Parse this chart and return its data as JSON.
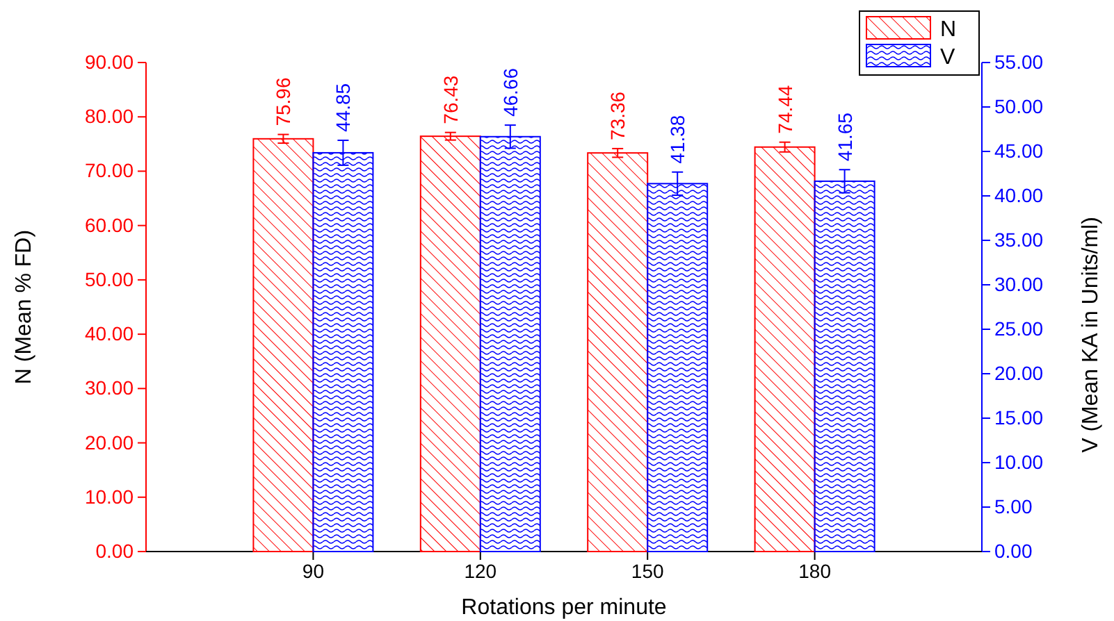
{
  "chart_data": {
    "type": "bar",
    "xlabel": "Rotations per minute",
    "ylabel": "N (Mean % FD)",
    "y2label": "V (Mean KA in Units/ml)",
    "categories": [
      "90",
      "120",
      "150",
      "180"
    ],
    "series": [
      {
        "name": "N",
        "color": "#ff0000",
        "values": [
          75.96,
          76.43,
          73.36,
          74.44
        ],
        "errors": [
          0.8,
          0.7,
          0.8,
          0.9
        ]
      },
      {
        "name": "V",
        "color": "#0000ff",
        "axis": "y2",
        "values": [
          44.85,
          46.66,
          41.38,
          41.65
        ],
        "errors": [
          1.4,
          1.3,
          1.3,
          1.3
        ]
      }
    ],
    "ylim": [
      0,
      90
    ],
    "yticks": [
      {
        "value": 0,
        "label": "0.00"
      },
      {
        "value": 10,
        "label": "10.00"
      },
      {
        "value": 20,
        "label": "20.00"
      },
      {
        "value": 30,
        "label": "30.00"
      },
      {
        "value": 40,
        "label": "40.00"
      },
      {
        "value": 50,
        "label": "50.00"
      },
      {
        "value": 60,
        "label": "60.00"
      },
      {
        "value": 70,
        "label": "70.00"
      },
      {
        "value": 80,
        "label": "80.00"
      },
      {
        "value": 90,
        "label": "90.00"
      }
    ],
    "y2lim": [
      0,
      55
    ],
    "y2ticks": [
      {
        "value": 0,
        "label": "0.00"
      },
      {
        "value": 5,
        "label": "5.00"
      },
      {
        "value": 10,
        "label": "10.00"
      },
      {
        "value": 15,
        "label": "15.00"
      },
      {
        "value": 20,
        "label": "20.00"
      },
      {
        "value": 25,
        "label": "25.00"
      },
      {
        "value": 30,
        "label": "30.00"
      },
      {
        "value": 35,
        "label": "35.00"
      },
      {
        "value": 40,
        "label": "40.00"
      },
      {
        "value": 45,
        "label": "45.00"
      },
      {
        "value": 50,
        "label": "50.00"
      },
      {
        "value": 55,
        "label": "55.00"
      }
    ],
    "data_labels": true,
    "legend": "top right",
    "grid": false
  }
}
